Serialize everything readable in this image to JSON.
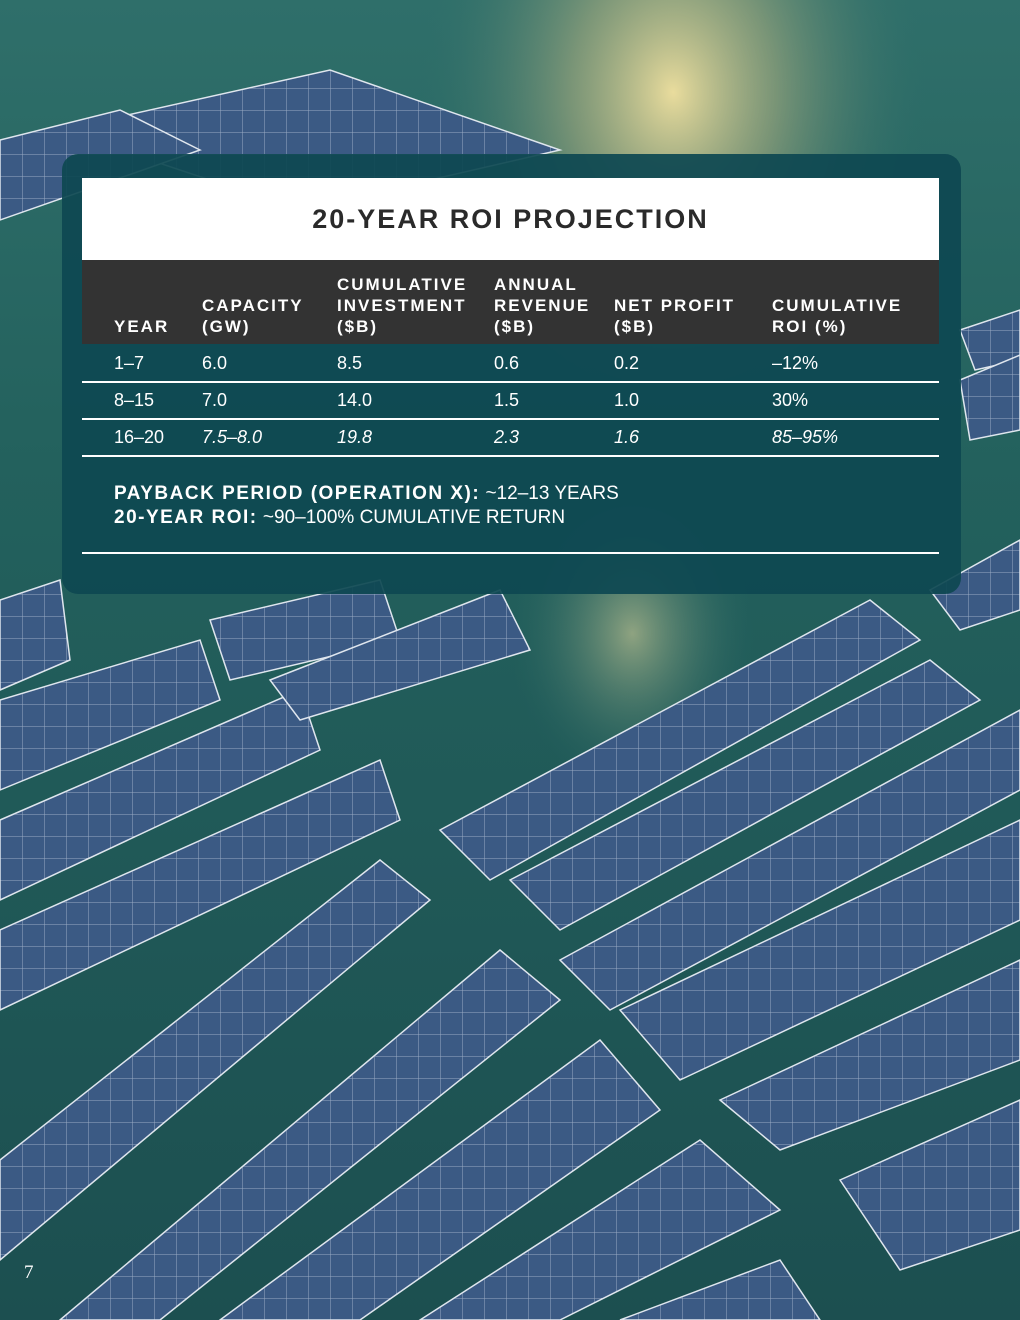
{
  "colors": {
    "card_bg": "#0e4852",
    "header_bg": "#333333",
    "title_bg": "#ffffff",
    "title_text": "#2a2a2a",
    "water": "#1f5b57",
    "panel": "#3d5c83"
  },
  "title": "20-YEAR ROI PROJECTION",
  "table": {
    "headers": [
      "YEAR",
      "CAPACITY\n(GW)",
      "CUMULATIVE\nINVESTMENT\n($B)",
      "ANNUAL\nREVENUE\n($B)",
      "NET PROFIT\n($B)",
      "CUMULATIVE\nROI (%)"
    ],
    "rows": [
      [
        "1–7",
        "6.0",
        "8.5",
        "0.6",
        "0.2",
        "–12%"
      ],
      [
        "8–15",
        "7.0",
        "14.0",
        "1.5",
        "1.0",
        "30%"
      ],
      [
        "16–20",
        "7.5–8.0",
        "19.8",
        "2.3",
        "1.6",
        "85–95%"
      ]
    ]
  },
  "summary": {
    "payback_label": "PAYBACK PERIOD (OPERATION X):",
    "payback_value": " ~12–13 YEARS",
    "roi_label": "20-YEAR ROI:",
    "roi_value": " ~90–100% CUMULATIVE RETURN"
  },
  "page_number": "7"
}
